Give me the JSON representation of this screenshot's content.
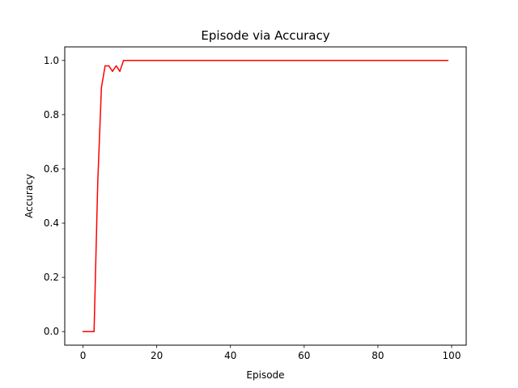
{
  "chart_data": {
    "type": "line",
    "title": "Episode via Accuracy",
    "xlabel": "Episode",
    "ylabel": "Accuracy",
    "xlim": [
      -4.95,
      103.95
    ],
    "ylim": [
      -0.05,
      1.05
    ],
    "xticks": [
      0,
      20,
      40,
      60,
      80,
      100
    ],
    "yticks": [
      0.0,
      0.2,
      0.4,
      0.6,
      0.8,
      1.0
    ],
    "xtick_labels": [
      "0",
      "20",
      "40",
      "60",
      "80",
      "100"
    ],
    "ytick_labels": [
      "0.0",
      "0.2",
      "0.4",
      "0.6",
      "0.8",
      "1.0"
    ],
    "grid": false,
    "legend": "none",
    "series": [
      {
        "color": "#ff0000",
        "x": [
          0,
          1,
          2,
          3,
          4,
          5,
          6,
          7,
          8,
          9,
          10,
          11,
          99
        ],
        "y": [
          0.0,
          0.0,
          0.0,
          0.0,
          0.55,
          0.9,
          0.98,
          0.98,
          0.96,
          0.98,
          0.96,
          1.0,
          1.0
        ]
      }
    ]
  }
}
